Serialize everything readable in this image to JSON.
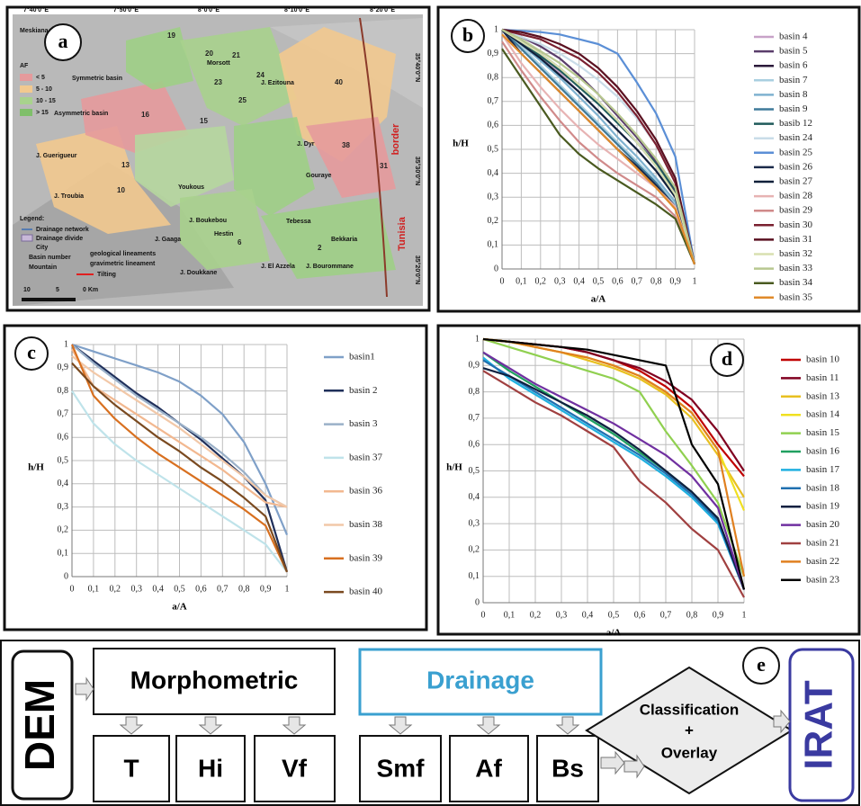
{
  "chart_data": [
    {
      "type": "line",
      "panel_label": "b",
      "x_label": "a/A",
      "y_label": "h/H",
      "x": [
        0,
        0.1,
        0.2,
        0.3,
        0.4,
        0.5,
        0.6,
        0.7,
        0.8,
        0.9,
        1
      ],
      "xlim": [
        0,
        1
      ],
      "ylim": [
        0,
        1
      ],
      "grid": true,
      "xticks": [
        0,
        {
          "value": 0.1,
          "label": "0,1"
        },
        {
          "value": 0.2,
          "label": "0,2"
        },
        {
          "value": 0.3,
          "label": "0,3"
        },
        {
          "value": 0.4,
          "label": "0,4"
        },
        {
          "value": 0.5,
          "label": "0,5"
        },
        {
          "value": 0.6,
          "label": "0,6"
        },
        {
          "value": 0.7,
          "label": "0,7"
        },
        {
          "value": 0.8,
          "label": "0,8"
        },
        {
          "value": 0.9,
          "label": "0,9"
        },
        1
      ],
      "yticks": [
        0,
        {
          "value": 0.1,
          "label": "0,1"
        },
        {
          "value": 0.2,
          "label": "0,2"
        },
        {
          "value": 0.3,
          "label": "0,3"
        },
        {
          "value": 0.4,
          "label": "0,4"
        },
        {
          "value": 0.5,
          "label": "0,5"
        },
        {
          "value": 0.6,
          "label": "0,6"
        },
        {
          "value": 0.7,
          "label": "0,7"
        },
        {
          "value": 0.8,
          "label": "0,8"
        },
        {
          "value": 0.9,
          "label": "0,9"
        },
        1
      ],
      "series": [
        {
          "name": "basin 4",
          "color": "#c8a2c8",
          "values": [
            1,
            0.95,
            0.89,
            0.82,
            0.74,
            0.66,
            0.58,
            0.5,
            0.41,
            0.3,
            0.02
          ]
        },
        {
          "name": "basin 5",
          "color": "#5a3d6b",
          "values": [
            1,
            0.97,
            0.93,
            0.88,
            0.81,
            0.73,
            0.64,
            0.55,
            0.45,
            0.32,
            0.02
          ]
        },
        {
          "name": "basin 6",
          "color": "#2b1a3a",
          "values": [
            1,
            0.96,
            0.9,
            0.84,
            0.77,
            0.7,
            0.62,
            0.53,
            0.43,
            0.31,
            0.02
          ]
        },
        {
          "name": "basin 7",
          "color": "#a9cfe0",
          "values": [
            1,
            0.93,
            0.85,
            0.77,
            0.69,
            0.61,
            0.53,
            0.45,
            0.37,
            0.27,
            0.02
          ]
        },
        {
          "name": "basin 8",
          "color": "#7fb2d0",
          "values": [
            1,
            0.94,
            0.87,
            0.8,
            0.72,
            0.64,
            0.55,
            0.47,
            0.38,
            0.28,
            0.02
          ]
        },
        {
          "name": "basin 9",
          "color": "#3f7a9a",
          "values": [
            1,
            0.92,
            0.84,
            0.76,
            0.68,
            0.6,
            0.52,
            0.44,
            0.36,
            0.26,
            0.02
          ]
        },
        {
          "name": "basib 12",
          "color": "#1f5a5a",
          "values": [
            1,
            0.95,
            0.89,
            0.83,
            0.76,
            0.69,
            0.61,
            0.53,
            0.44,
            0.33,
            0.02
          ]
        },
        {
          "name": "basin 24",
          "color": "#c9dce8",
          "values": [
            1,
            0.97,
            0.94,
            0.9,
            0.85,
            0.79,
            0.72,
            0.63,
            0.52,
            0.38,
            0.02
          ]
        },
        {
          "name": "basin 25",
          "color": "#5b8fd6",
          "values": [
            1,
            0.995,
            0.99,
            0.98,
            0.96,
            0.94,
            0.9,
            0.78,
            0.65,
            0.47,
            0.02
          ]
        },
        {
          "name": "basin 26",
          "color": "#1b2a4a",
          "values": [
            1,
            0.9,
            0.82,
            0.74,
            0.66,
            0.58,
            0.5,
            0.43,
            0.35,
            0.26,
            0.02
          ]
        },
        {
          "name": "basin 27",
          "color": "#10203a",
          "values": [
            1,
            0.94,
            0.88,
            0.81,
            0.74,
            0.66,
            0.58,
            0.5,
            0.41,
            0.3,
            0.02
          ]
        },
        {
          "name": "basin 28",
          "color": "#e7b3b3",
          "values": [
            0.98,
            0.86,
            0.76,
            0.67,
            0.59,
            0.52,
            0.46,
            0.4,
            0.34,
            0.26,
            0.02
          ]
        },
        {
          "name": "basin 29",
          "color": "#d08a8a",
          "values": [
            0.95,
            0.83,
            0.72,
            0.62,
            0.53,
            0.46,
            0.4,
            0.35,
            0.3,
            0.22,
            0.02
          ]
        },
        {
          "name": "basin 30",
          "color": "#7a2030",
          "values": [
            1,
            0.98,
            0.96,
            0.92,
            0.88,
            0.82,
            0.74,
            0.64,
            0.52,
            0.36,
            0.02
          ]
        },
        {
          "name": "basin 31",
          "color": "#5a1020",
          "values": [
            1,
            0.99,
            0.97,
            0.94,
            0.9,
            0.84,
            0.76,
            0.66,
            0.54,
            0.38,
            0.02
          ]
        },
        {
          "name": "basin 32",
          "color": "#d8e0b0",
          "values": [
            1,
            0.95,
            0.9,
            0.84,
            0.77,
            0.7,
            0.62,
            0.53,
            0.43,
            0.31,
            0.02
          ]
        },
        {
          "name": "basin 33",
          "color": "#b8c890",
          "values": [
            1,
            0.96,
            0.91,
            0.86,
            0.8,
            0.73,
            0.65,
            0.56,
            0.46,
            0.34,
            0.02
          ]
        },
        {
          "name": "basin 34",
          "color": "#4a5a20",
          "values": [
            0.92,
            0.8,
            0.68,
            0.56,
            0.48,
            0.42,
            0.37,
            0.32,
            0.27,
            0.21,
            0.02
          ]
        },
        {
          "name": "basin 35",
          "color": "#e08a2a",
          "values": [
            0.98,
            0.9,
            0.82,
            0.74,
            0.66,
            0.58,
            0.5,
            0.42,
            0.34,
            0.25,
            0.02
          ]
        }
      ]
    },
    {
      "type": "line",
      "panel_label": "c",
      "x_label": "a/A",
      "y_label": "h/H",
      "x": [
        0,
        0.1,
        0.2,
        0.3,
        0.4,
        0.5,
        0.6,
        0.7,
        0.8,
        0.9,
        1
      ],
      "xlim": [
        0,
        1
      ],
      "ylim": [
        0,
        1
      ],
      "grid": true,
      "xticks": [
        0,
        {
          "value": 0.1,
          "label": "0,1"
        },
        {
          "value": 0.2,
          "label": "0,2"
        },
        {
          "value": 0.3,
          "label": "0,3"
        },
        {
          "value": 0.4,
          "label": "0,4"
        },
        {
          "value": 0.5,
          "label": "0,5"
        },
        {
          "value": 0.6,
          "label": "0,6"
        },
        {
          "value": 0.7,
          "label": "0,7"
        },
        {
          "value": 0.8,
          "label": "0,8"
        },
        {
          "value": 0.9,
          "label": "0,9"
        },
        1
      ],
      "yticks": [
        0,
        {
          "value": 0.1,
          "label": "0,1"
        },
        {
          "value": 0.2,
          "label": "0,2"
        },
        {
          "value": 0.3,
          "label": "0,3"
        },
        {
          "value": 0.4,
          "label": "0,4"
        },
        {
          "value": 0.5,
          "label": "0,5"
        },
        {
          "value": 0.6,
          "label": "0,6"
        },
        {
          "value": 0.7,
          "label": "0,7"
        },
        {
          "value": 0.8,
          "label": "0,8"
        },
        {
          "value": 0.9,
          "label": "0,9"
        },
        1
      ],
      "series": [
        {
          "name": "basin1",
          "color": "#7fa0c8",
          "values": [
            1,
            0.97,
            0.94,
            0.91,
            0.88,
            0.84,
            0.78,
            0.7,
            0.58,
            0.4,
            0.18
          ]
        },
        {
          "name": "basin 2",
          "color": "#1f2f5a",
          "values": [
            1,
            0.93,
            0.86,
            0.79,
            0.73,
            0.66,
            0.59,
            0.51,
            0.43,
            0.33,
            0.02
          ]
        },
        {
          "name": "basin 3",
          "color": "#9ab0c8",
          "values": [
            1,
            0.92,
            0.85,
            0.78,
            0.72,
            0.66,
            0.6,
            0.53,
            0.45,
            0.35,
            0.3
          ]
        },
        {
          "name": "basin 37",
          "color": "#bfe3ea",
          "values": [
            0.8,
            0.66,
            0.57,
            0.5,
            0.44,
            0.38,
            0.32,
            0.26,
            0.2,
            0.14,
            0.02
          ]
        },
        {
          "name": "basin 36",
          "color": "#f2b890",
          "values": [
            0.98,
            0.82,
            0.76,
            0.7,
            0.64,
            0.58,
            0.52,
            0.46,
            0.39,
            0.32,
            0.3
          ]
        },
        {
          "name": "basin 38",
          "color": "#f2c8a8",
          "values": [
            0.95,
            0.88,
            0.82,
            0.76,
            0.7,
            0.64,
            0.57,
            0.5,
            0.43,
            0.35,
            0.3
          ]
        },
        {
          "name": "basin 39",
          "color": "#d87020",
          "values": [
            1,
            0.78,
            0.68,
            0.6,
            0.53,
            0.47,
            0.41,
            0.35,
            0.29,
            0.22,
            0.02
          ]
        },
        {
          "name": "basin 40",
          "color": "#7a4a20",
          "values": [
            0.92,
            0.82,
            0.74,
            0.67,
            0.6,
            0.54,
            0.47,
            0.41,
            0.34,
            0.26,
            0.02
          ]
        }
      ]
    },
    {
      "type": "line",
      "panel_label": "d",
      "x_label": "a/A",
      "y_label": "h/H",
      "x": [
        0,
        0.1,
        0.2,
        0.3,
        0.4,
        0.5,
        0.6,
        0.7,
        0.8,
        0.9,
        1
      ],
      "xlim": [
        0,
        1
      ],
      "ylim": [
        0,
        1
      ],
      "grid": true,
      "xticks": [
        0,
        {
          "value": 0.1,
          "label": "0,1"
        },
        {
          "value": 0.2,
          "label": "0,2"
        },
        {
          "value": 0.3,
          "label": "0,3"
        },
        {
          "value": 0.4,
          "label": "0,4"
        },
        {
          "value": 0.5,
          "label": "0,5"
        },
        {
          "value": 0.6,
          "label": "0,6"
        },
        {
          "value": 0.7,
          "label": "0,7"
        },
        {
          "value": 0.8,
          "label": "0,8"
        },
        {
          "value": 0.9,
          "label": "0,9"
        },
        1
      ],
      "yticks": [
        0,
        {
          "value": 0.1,
          "label": "0,1"
        },
        {
          "value": 0.2,
          "label": "0,2"
        },
        {
          "value": 0.3,
          "label": "0,3"
        },
        {
          "value": 0.4,
          "label": "0,4"
        },
        {
          "value": 0.5,
          "label": "0,5"
        },
        {
          "value": 0.6,
          "label": "0,6"
        },
        {
          "value": 0.7,
          "label": "0,7"
        },
        {
          "value": 0.8,
          "label": "0,8"
        },
        {
          "value": 0.9,
          "label": "0,9"
        },
        1
      ],
      "series": [
        {
          "name": "basin 10",
          "color": "#c00000",
          "values": [
            1,
            0.99,
            0.98,
            0.97,
            0.95,
            0.92,
            0.88,
            0.82,
            0.74,
            0.6,
            0.48
          ]
        },
        {
          "name": "basin 11",
          "color": "#800020",
          "values": [
            1,
            0.99,
            0.98,
            0.97,
            0.95,
            0.92,
            0.89,
            0.84,
            0.77,
            0.65,
            0.5
          ]
        },
        {
          "name": "basin 13",
          "color": "#e8c020",
          "values": [
            1,
            0.99,
            0.97,
            0.95,
            0.92,
            0.89,
            0.85,
            0.79,
            0.7,
            0.56,
            0.4
          ]
        },
        {
          "name": "basin 14",
          "color": "#f0e020",
          "values": [
            1,
            0.99,
            0.97,
            0.95,
            0.93,
            0.9,
            0.86,
            0.8,
            0.72,
            0.58,
            0.35
          ]
        },
        {
          "name": "basin 15",
          "color": "#90d050",
          "values": [
            1,
            0.97,
            0.94,
            0.91,
            0.88,
            0.85,
            0.8,
            0.65,
            0.52,
            0.38,
            0.1
          ]
        },
        {
          "name": "basin 16",
          "color": "#20a060",
          "values": [
            0.95,
            0.88,
            0.82,
            0.76,
            0.7,
            0.64,
            0.57,
            0.5,
            0.42,
            0.32,
            0.05
          ]
        },
        {
          "name": "basin 17",
          "color": "#20b0e0",
          "values": [
            0.93,
            0.85,
            0.79,
            0.73,
            0.67,
            0.61,
            0.55,
            0.48,
            0.4,
            0.3,
            0.05
          ]
        },
        {
          "name": "basin 18",
          "color": "#2070b0",
          "values": [
            0.92,
            0.86,
            0.8,
            0.74,
            0.68,
            0.62,
            0.56,
            0.49,
            0.41,
            0.31,
            0.05
          ]
        },
        {
          "name": "basin 19",
          "color": "#102040",
          "values": [
            0.89,
            0.86,
            0.81,
            0.76,
            0.71,
            0.65,
            0.58,
            0.5,
            0.42,
            0.32,
            0.05
          ]
        },
        {
          "name": "basin 20",
          "color": "#7030a0",
          "values": [
            0.95,
            0.89,
            0.83,
            0.78,
            0.73,
            0.68,
            0.62,
            0.56,
            0.48,
            0.36,
            0.05
          ]
        },
        {
          "name": "basin 21",
          "color": "#a04040",
          "values": [
            0.88,
            0.82,
            0.76,
            0.71,
            0.65,
            0.59,
            0.46,
            0.38,
            0.28,
            0.2,
            0.02
          ]
        },
        {
          "name": "basin 22",
          "color": "#e08020",
          "values": [
            1,
            0.99,
            0.97,
            0.95,
            0.93,
            0.9,
            0.86,
            0.8,
            0.72,
            0.58,
            0.1
          ]
        },
        {
          "name": "basin 23",
          "color": "#000000",
          "values": [
            1,
            0.99,
            0.98,
            0.97,
            0.96,
            0.94,
            0.92,
            0.9,
            0.6,
            0.45,
            0.05
          ]
        }
      ]
    }
  ],
  "map": {
    "panel_label": "a",
    "lon_labels": [
      "7°40'0\"E",
      "7°50'0\"E",
      "8°0'0\"E",
      "8°10'0\"E",
      "8°20'0\"E"
    ],
    "lat_labels": [
      "35°40'0\"N",
      "35°30'0\"N",
      "35°20'0\"N"
    ],
    "af_title": "AF",
    "af_classes": [
      "< 5",
      "5 - 10",
      "10 - 15",
      "> 15"
    ],
    "annotations": [
      "Symmetric basin",
      "Asymmetric basin"
    ],
    "places": [
      "Meskiana",
      "Morsott",
      "J. Ezitouna",
      "J. Dyr",
      "Gouraye",
      "J. Guerigueur",
      "J. Troubia",
      "Youkous",
      "J. Boukebou",
      "Hestin",
      "J. Gaaga",
      "J. Doukkane",
      "Tebessa",
      "Bekkaria",
      "J. Bourommane",
      "J. El Azzela"
    ],
    "basin_numbers": [
      "19",
      "20",
      "21",
      "23",
      "24",
      "25",
      "40",
      "16",
      "15",
      "13",
      "10",
      "38",
      "31",
      "2",
      "6"
    ],
    "legend_title": "Legend:",
    "legend_items": [
      "Drainage network",
      "Drainage divide",
      "City",
      "Basin number",
      "Mountain",
      "geological lineaments",
      "gravimetric lineament",
      "Tilting"
    ],
    "scale": [
      "10",
      "5",
      "0 Km"
    ],
    "border": "border",
    "country": "Tunisia"
  },
  "diagram": {
    "panel_label": "e",
    "input": "DEM",
    "groups": [
      {
        "title": "Morphometric",
        "indices": [
          "T",
          "Hi",
          "Vf"
        ]
      },
      {
        "title": "Drainage",
        "indices": [
          "Smf",
          "Af",
          "Bs"
        ]
      }
    ],
    "process": [
      "Classification",
      "+",
      "Overlay"
    ],
    "output": "IRAT"
  }
}
